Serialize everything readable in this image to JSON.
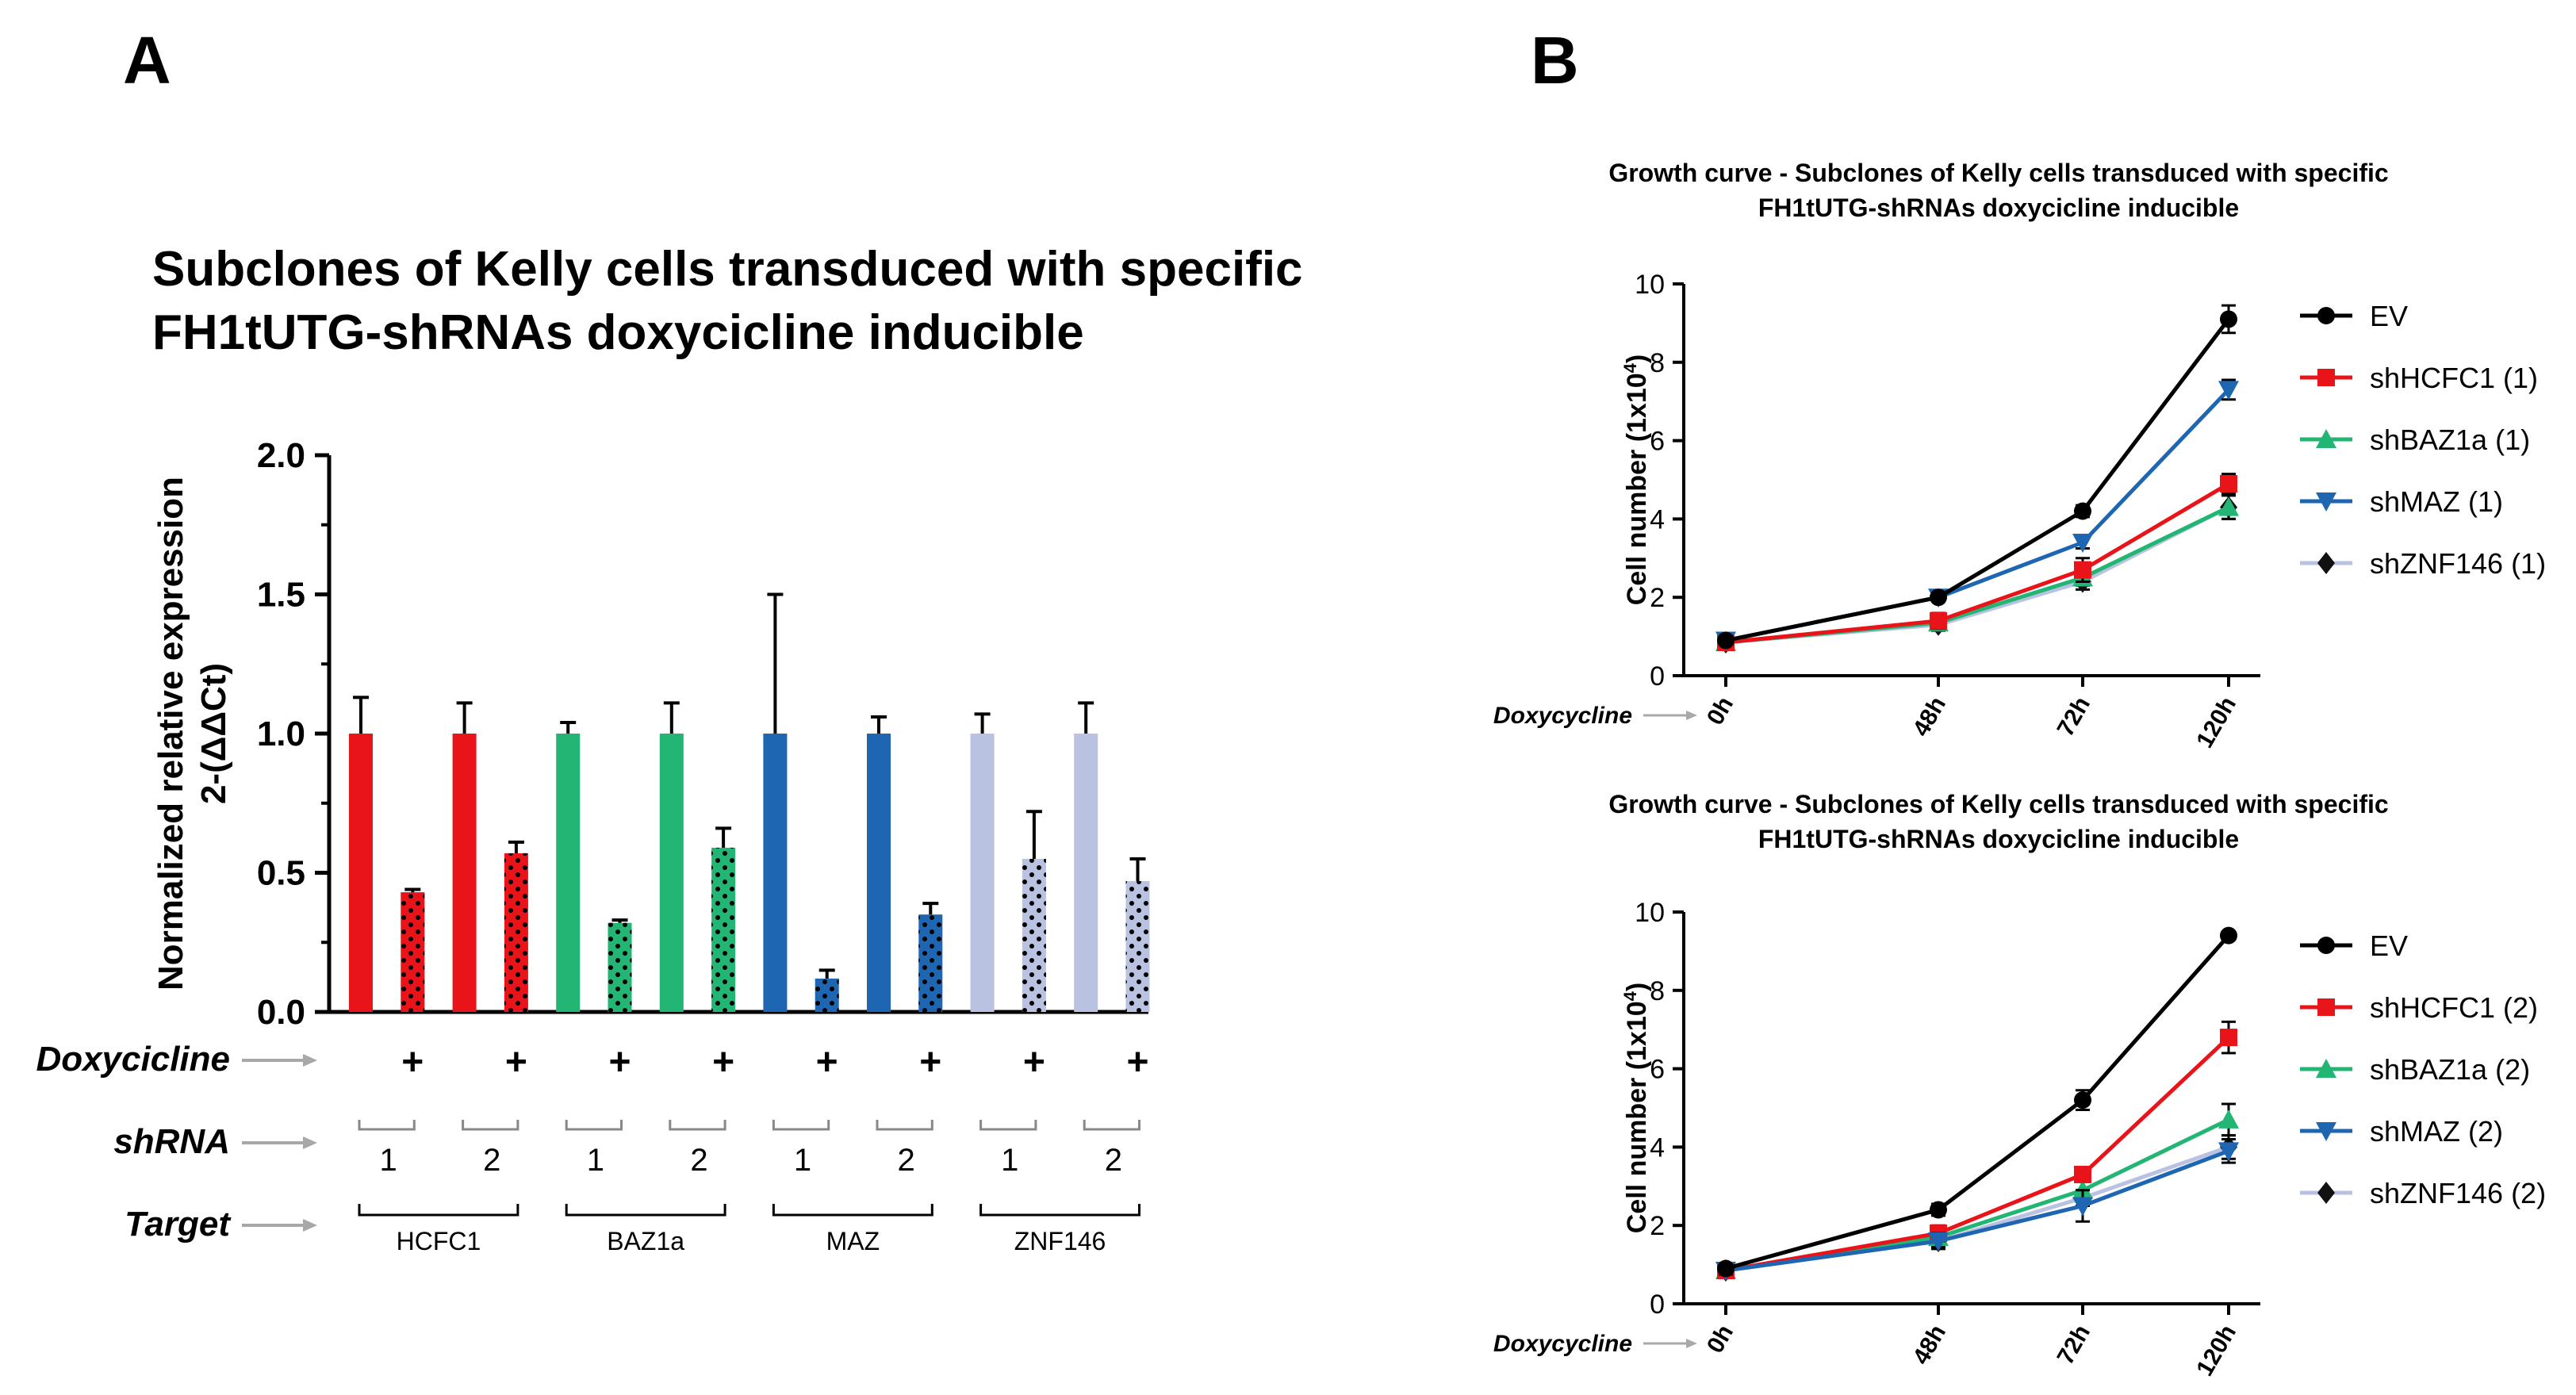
{
  "panels": {
    "a": "A",
    "b": "B"
  },
  "chart_data": [
    {
      "type": "bar",
      "title_line1": "Subclones of Kelly cells transduced with specific",
      "title_line2": "FH1tUTG-shRNAs doxycicline inducible",
      "ylabel_line1": "Normalized relative expression",
      "ylabel_line2": "2-(ΔΔCt)",
      "ylim": [
        0,
        2.0
      ],
      "yticks": [
        "0.0",
        "0.5",
        "1.0",
        "1.5",
        "2.0"
      ],
      "colors": {
        "HCFC1": "#e8141a",
        "BAZ1a": "#22b573",
        "MAZ": "#1f66b2",
        "ZNF146": "#b9c2e0"
      },
      "bars": [
        {
          "target": "HCFC1",
          "shRNA": "1",
          "dox": false,
          "value": 1.0,
          "error": 0.13
        },
        {
          "target": "HCFC1",
          "shRNA": "1",
          "dox": true,
          "value": 0.43,
          "error": 0.01
        },
        {
          "target": "HCFC1",
          "shRNA": "2",
          "dox": false,
          "value": 1.0,
          "error": 0.11
        },
        {
          "target": "HCFC1",
          "shRNA": "2",
          "dox": true,
          "value": 0.57,
          "error": 0.04
        },
        {
          "target": "BAZ1a",
          "shRNA": "1",
          "dox": false,
          "value": 1.0,
          "error": 0.04
        },
        {
          "target": "BAZ1a",
          "shRNA": "1",
          "dox": true,
          "value": 0.32,
          "error": 0.01
        },
        {
          "target": "BAZ1a",
          "shRNA": "2",
          "dox": false,
          "value": 1.0,
          "error": 0.11
        },
        {
          "target": "BAZ1a",
          "shRNA": "2",
          "dox": true,
          "value": 0.59,
          "error": 0.07
        },
        {
          "target": "MAZ",
          "shRNA": "1",
          "dox": false,
          "value": 1.0,
          "error": 0.5
        },
        {
          "target": "MAZ",
          "shRNA": "1",
          "dox": true,
          "value": 0.12,
          "error": 0.03
        },
        {
          "target": "MAZ",
          "shRNA": "2",
          "dox": false,
          "value": 1.0,
          "error": 0.06
        },
        {
          "target": "MAZ",
          "shRNA": "2",
          "dox": true,
          "value": 0.35,
          "error": 0.04
        },
        {
          "target": "ZNF146",
          "shRNA": "1",
          "dox": false,
          "value": 1.0,
          "error": 0.07
        },
        {
          "target": "ZNF146",
          "shRNA": "1",
          "dox": true,
          "value": 0.55,
          "error": 0.17
        },
        {
          "target": "ZNF146",
          "shRNA": "2",
          "dox": false,
          "value": 1.0,
          "error": 0.11
        },
        {
          "target": "ZNF146",
          "shRNA": "2",
          "dox": true,
          "value": 0.47,
          "error": 0.08
        }
      ],
      "rows": {
        "doxycicline_label": "Doxycicline",
        "shrna_label": "shRNA",
        "target_label": "Target",
        "plus": "+",
        "shrna_numbers": [
          "1",
          "2",
          "1",
          "2",
          "1",
          "2",
          "1",
          "2"
        ],
        "targets": [
          "HCFC1",
          "BAZ1a",
          "MAZ",
          "ZNF146"
        ]
      }
    },
    {
      "type": "line",
      "title_line1": "Growth curve - Subclones of Kelly cells transduced with specific",
      "title_line2": "FH1tUTG-shRNAs doxycicline inducible",
      "ylabel": "Cell number (1x10",
      "ylabel_sup": "4",
      "ylabel_end": ")",
      "ylim": [
        0,
        10
      ],
      "yticks": [
        "0",
        "2",
        "4",
        "6",
        "8",
        "10"
      ],
      "xlabel_row": "Doxycycline",
      "categories": [
        "0h",
        "48h",
        "72h",
        "120h"
      ],
      "series": [
        {
          "name": "EV",
          "color": "#000000",
          "marker": "circle",
          "values": [
            0.9,
            2.0,
            4.2,
            9.1
          ],
          "errors": [
            0.1,
            0.1,
            0.15,
            0.35
          ]
        },
        {
          "name": "shHCFC1 (1)",
          "color": "#e8141a",
          "marker": "square",
          "values": [
            0.85,
            1.4,
            2.7,
            4.9
          ],
          "errors": [
            0.1,
            0.2,
            0.3,
            0.25
          ]
        },
        {
          "name": "shBAZ1a (1)",
          "color": "#22b573",
          "marker": "triangle-up",
          "values": [
            0.85,
            1.35,
            2.5,
            4.3
          ],
          "errors": [
            0.1,
            0.15,
            0.2,
            0.3
          ]
        },
        {
          "name": "shMAZ (1)",
          "color": "#1f66b2",
          "marker": "triangle-down",
          "values": [
            0.9,
            2.0,
            3.4,
            7.3
          ],
          "errors": [
            0.1,
            0.1,
            0.15,
            0.25
          ]
        },
        {
          "name": "shZNF146 (1)",
          "color": "#b9c2e0",
          "marker": "diamond",
          "values": [
            0.85,
            1.3,
            2.4,
            4.3
          ],
          "errors": [
            0.1,
            0.15,
            0.2,
            0.3
          ]
        }
      ]
    },
    {
      "type": "line",
      "title_line1": "Growth curve - Subclones of Kelly cells transduced with specific",
      "title_line2": "FH1tUTG-shRNAs doxycicline inducible",
      "ylabel": "Cell number (1x10",
      "ylabel_sup": "4",
      "ylabel_end": ")",
      "ylim": [
        0,
        10
      ],
      "yticks": [
        "0",
        "2",
        "4",
        "6",
        "8",
        "10"
      ],
      "xlabel_row": "Doxycycline",
      "categories": [
        "0h",
        "48h",
        "72h",
        "120h"
      ],
      "series": [
        {
          "name": "EV",
          "color": "#000000",
          "marker": "circle",
          "values": [
            0.9,
            2.4,
            5.2,
            9.4
          ],
          "errors": [
            0.1,
            0.15,
            0.25,
            0.1
          ]
        },
        {
          "name": "shHCFC1 (2)",
          "color": "#e8141a",
          "marker": "square",
          "values": [
            0.85,
            1.8,
            3.3,
            6.8
          ],
          "errors": [
            0.1,
            0.2,
            0.15,
            0.4
          ]
        },
        {
          "name": "shBAZ1a (2)",
          "color": "#22b573",
          "marker": "triangle-up",
          "values": [
            0.85,
            1.7,
            2.9,
            4.7
          ],
          "errors": [
            0.1,
            0.2,
            0.3,
            0.4
          ]
        },
        {
          "name": "shMAZ (2)",
          "color": "#1f66b2",
          "marker": "triangle-down",
          "values": [
            0.85,
            1.6,
            2.5,
            3.9
          ],
          "errors": [
            0.1,
            0.2,
            0.4,
            0.3
          ]
        },
        {
          "name": "shZNF146 (2)",
          "color": "#b9c2e0",
          "marker": "diamond",
          "values": [
            0.85,
            1.6,
            2.7,
            4.0
          ],
          "errors": [
            0.1,
            0.15,
            0.2,
            0.3
          ]
        }
      ]
    }
  ]
}
